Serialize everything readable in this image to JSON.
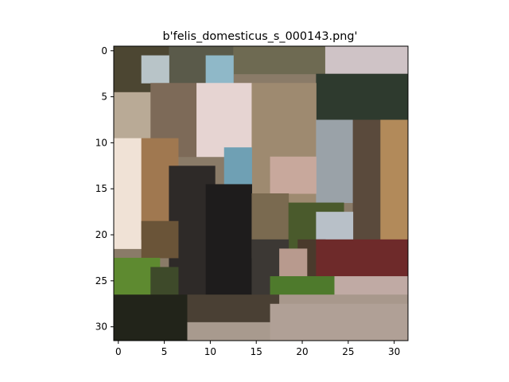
{
  "chart_data": {
    "type": "heatmap",
    "title": "b'felis_domesticus_s_000143.png'",
    "xlabel": "",
    "ylabel": "",
    "rows": 32,
    "cols": 32,
    "xlim": [
      -0.5,
      31.5
    ],
    "ylim": [
      31.5,
      -0.5
    ],
    "x_ticks": [
      0,
      5,
      10,
      15,
      20,
      25,
      30
    ],
    "y_ticks": [
      0,
      5,
      10,
      15,
      20,
      25,
      30
    ],
    "grid": false,
    "pixel_regions": [
      {
        "rows": [
          0,
          31
        ],
        "cols": [
          0,
          31
        ],
        "color": "#8a7b68"
      },
      {
        "rows": [
          0,
          4
        ],
        "cols": [
          0,
          5
        ],
        "color": "#4c4632"
      },
      {
        "rows": [
          0,
          3
        ],
        "cols": [
          6,
          12
        ],
        "color": "#5a5a4a"
      },
      {
        "rows": [
          0,
          2
        ],
        "cols": [
          13,
          22
        ],
        "color": "#6e6a52"
      },
      {
        "rows": [
          0,
          3
        ],
        "cols": [
          23,
          31
        ],
        "color": "#cfc3c6"
      },
      {
        "rows": [
          1,
          3
        ],
        "cols": [
          3,
          5
        ],
        "color": "#b8c4c8"
      },
      {
        "rows": [
          1,
          3
        ],
        "cols": [
          10,
          12
        ],
        "color": "#8fb8c8"
      },
      {
        "rows": [
          3,
          7
        ],
        "cols": [
          22,
          31
        ],
        "color": "#2e3a2e"
      },
      {
        "rows": [
          5,
          9
        ],
        "cols": [
          0,
          3
        ],
        "color": "#b9aa96"
      },
      {
        "rows": [
          4,
          11
        ],
        "cols": [
          4,
          8
        ],
        "color": "#7d6a58"
      },
      {
        "rows": [
          4,
          11
        ],
        "cols": [
          9,
          14
        ],
        "color": "#e6d4d2"
      },
      {
        "rows": [
          4,
          16
        ],
        "cols": [
          15,
          21
        ],
        "color": "#9e8a70"
      },
      {
        "rows": [
          8,
          16
        ],
        "cols": [
          22,
          25
        ],
        "color": "#9aa2a8"
      },
      {
        "rows": [
          8,
          22
        ],
        "cols": [
          26,
          28
        ],
        "color": "#5a4a3c"
      },
      {
        "rows": [
          8,
          22
        ],
        "cols": [
          29,
          31
        ],
        "color": "#b28a5a"
      },
      {
        "rows": [
          10,
          21
        ],
        "cols": [
          0,
          2
        ],
        "color": "#f0e2d6"
      },
      {
        "rows": [
          10,
          20
        ],
        "cols": [
          3,
          6
        ],
        "color": "#a07850"
      },
      {
        "rows": [
          11,
          17
        ],
        "cols": [
          12,
          14
        ],
        "color": "#6fa0b4"
      },
      {
        "rows": [
          12,
          15
        ],
        "cols": [
          17,
          21
        ],
        "color": "#c8a89c"
      },
      {
        "rows": [
          13,
          26
        ],
        "cols": [
          6,
          10
        ],
        "color": "#2e2a28"
      },
      {
        "rows": [
          15,
          27
        ],
        "cols": [
          10,
          14
        ],
        "color": "#1e1c1c"
      },
      {
        "rows": [
          16,
          22
        ],
        "cols": [
          15,
          18
        ],
        "color": "#7a6a50"
      },
      {
        "rows": [
          17,
          22
        ],
        "cols": [
          19,
          24
        ],
        "color": "#4a5a2c"
      },
      {
        "rows": [
          18,
          21
        ],
        "cols": [
          22,
          25
        ],
        "color": "#b8c0c8"
      },
      {
        "rows": [
          19,
          22
        ],
        "cols": [
          3,
          6
        ],
        "color": "#6a5438"
      },
      {
        "rows": [
          21,
          26
        ],
        "cols": [
          15,
          18
        ],
        "color": "#3c3834"
      },
      {
        "rows": [
          21,
          24
        ],
        "cols": [
          20,
          22
        ],
        "color": "#4a3a2c"
      },
      {
        "rows": [
          21,
          25
        ],
        "cols": [
          22,
          31
        ],
        "color": "#6e2a2a"
      },
      {
        "rows": [
          22,
          26
        ],
        "cols": [
          18,
          20
        ],
        "color": "#b89a8e"
      },
      {
        "rows": [
          23,
          26
        ],
        "cols": [
          0,
          4
        ],
        "color": "#5e8a30"
      },
      {
        "rows": [
          24,
          27
        ],
        "cols": [
          4,
          6
        ],
        "color": "#3e4a2a"
      },
      {
        "rows": [
          25,
          26
        ],
        "cols": [
          17,
          23
        ],
        "color": "#4e7a2c"
      },
      {
        "rows": [
          25,
          27
        ],
        "cols": [
          24,
          31
        ],
        "color": "#c0aaa4"
      },
      {
        "rows": [
          27,
          31
        ],
        "cols": [
          0,
          7
        ],
        "color": "#22241a"
      },
      {
        "rows": [
          27,
          29
        ],
        "cols": [
          8,
          17
        ],
        "color": "#4a4034"
      },
      {
        "rows": [
          27,
          29
        ],
        "cols": [
          18,
          31
        ],
        "color": "#a8988c"
      },
      {
        "rows": [
          30,
          31
        ],
        "cols": [
          8,
          31
        ],
        "color": "#a89a8e"
      },
      {
        "rows": [
          28,
          31
        ],
        "cols": [
          17,
          31
        ],
        "color": "#b0a096"
      }
    ]
  }
}
